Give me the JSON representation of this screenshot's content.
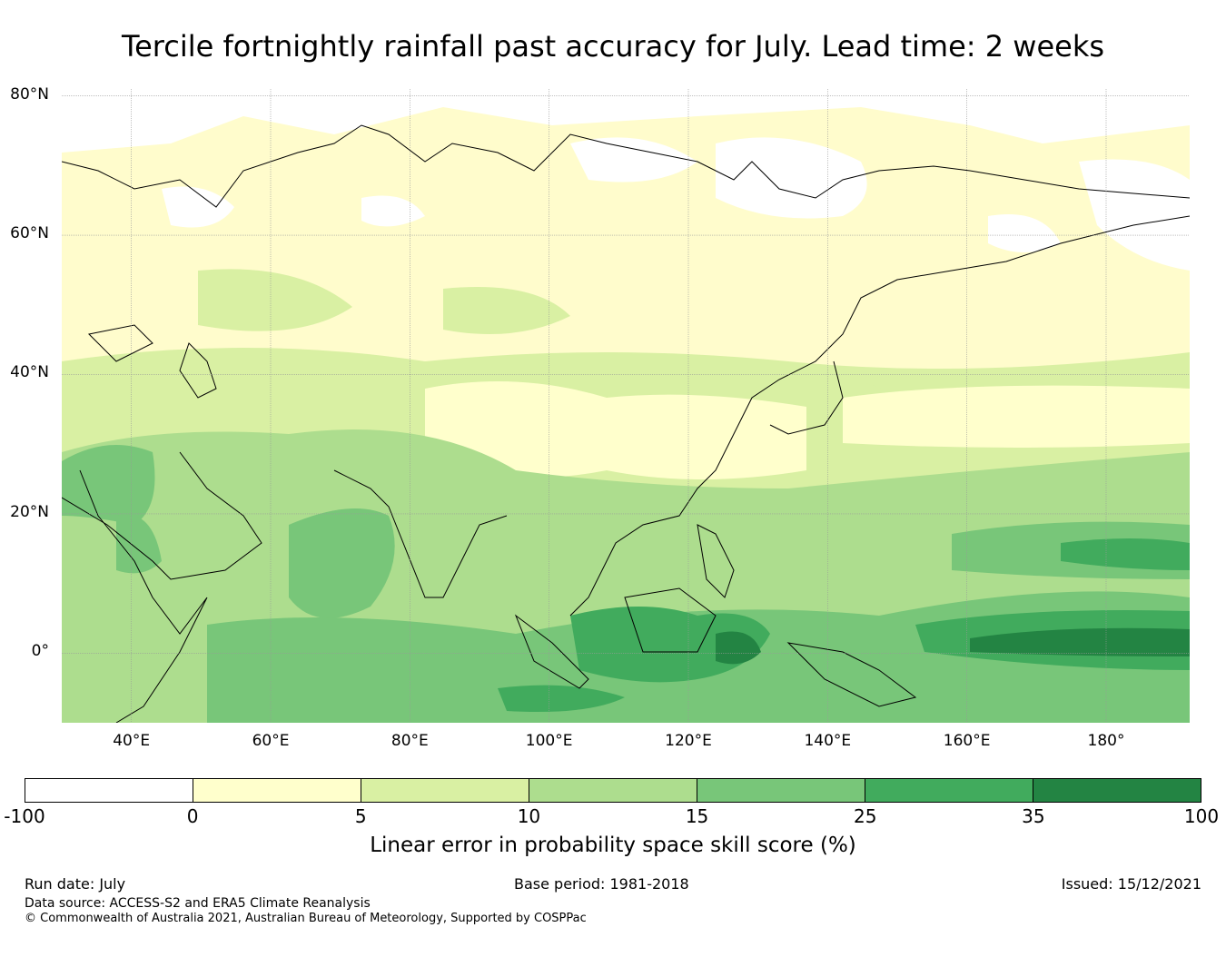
{
  "title": "Tercile fortnightly rainfall past accuracy for July. Lead time: 2 weeks",
  "map": {
    "lon_range": [
      30,
      192
    ],
    "lat_range": [
      -10,
      81
    ],
    "lat_ticks": [
      {
        "lat": 80,
        "label": "80°N"
      },
      {
        "lat": 60,
        "label": "60°N"
      },
      {
        "lat": 40,
        "label": "40°N"
      },
      {
        "lat": 20,
        "label": "20°N"
      },
      {
        "lat": 0,
        "label": "0°"
      }
    ],
    "lon_ticks": [
      {
        "lon": 40,
        "label": "40°E"
      },
      {
        "lon": 60,
        "label": "60°E"
      },
      {
        "lon": 80,
        "label": "80°E"
      },
      {
        "lon": 100,
        "label": "100°E"
      },
      {
        "lon": 120,
        "label": "120°E"
      },
      {
        "lon": 140,
        "label": "140°E"
      },
      {
        "lon": 160,
        "label": "160°E"
      },
      {
        "lon": 180,
        "label": "180°"
      }
    ],
    "gridlines": true
  },
  "colorbar": {
    "bounds": [
      "-100",
      "0",
      "5",
      "10",
      "15",
      "25",
      "35",
      "100"
    ],
    "colors": [
      "#ffffff",
      "#ffffcc",
      "#d9f0a3",
      "#addd8e",
      "#78c679",
      "#41ab5d",
      "#238443"
    ],
    "label": "Linear error in probability space skill score (%)"
  },
  "footer": {
    "run_date": "Run date: July",
    "base_period": "Base period: 1981-2018",
    "issued": "Issued: 15/12/2021",
    "data_source": "Data source: ACCESS-S2 and ERA5 Climate Reanalysis",
    "copyright": "© Commonwealth of Australia 2021, Australian Bureau of Meteorology, Supported by COSPPac"
  }
}
